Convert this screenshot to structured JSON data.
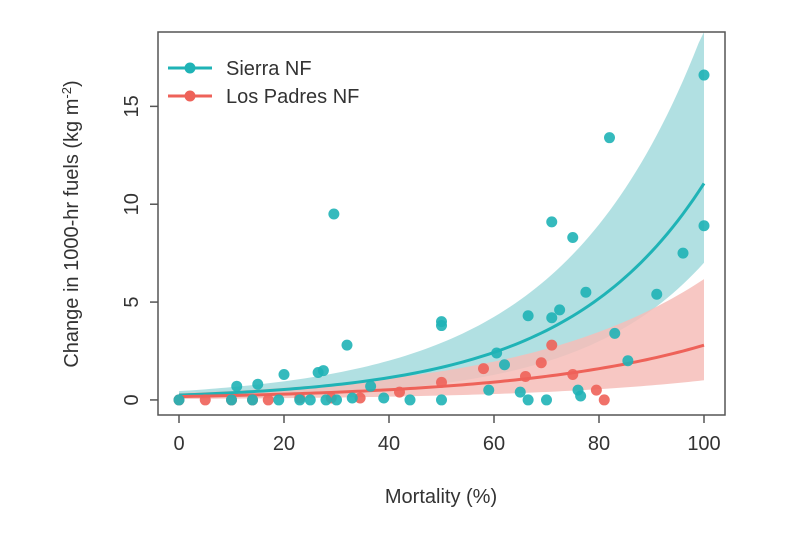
{
  "chart_data": {
    "type": "scatter",
    "title": "",
    "xlabel": "Mortality (%)",
    "ylabel_main": "Change in 1000-hr fuels (kg m",
    "ylabel_sup": "-2",
    "ylabel_end": ")",
    "xlim": [
      -4,
      104
    ],
    "ylim": [
      -0.77,
      18.8
    ],
    "xticks": [
      0,
      20,
      40,
      60,
      80,
      100
    ],
    "yticks": [
      0,
      5,
      10,
      15
    ],
    "grid": false,
    "legend_position": "top-left",
    "series": [
      {
        "name": "Sierra NF",
        "color": "#1fb3b6",
        "band_color": "#a3dadd",
        "fit": {
          "model": "exponential",
          "a": 0.25,
          "k": 0.0379
        },
        "band_lower": {
          "a": 0.1,
          "k": 0.0425
        },
        "band_upper": {
          "a": 0.45,
          "k": 0.0374
        },
        "points": [
          [
            0,
            0
          ],
          [
            11,
            0.7
          ],
          [
            15,
            0.8
          ],
          [
            20,
            1.3
          ],
          [
            26.5,
            1.4
          ],
          [
            27.5,
            1.5
          ],
          [
            29.5,
            9.5
          ],
          [
            32,
            2.8
          ],
          [
            36.5,
            0.7
          ],
          [
            50,
            4.0
          ],
          [
            50,
            3.8
          ],
          [
            50,
            0
          ],
          [
            60.5,
            2.4
          ],
          [
            62,
            1.8
          ],
          [
            66.5,
            4.3
          ],
          [
            71,
            9.1
          ],
          [
            71,
            4.2
          ],
          [
            72.5,
            4.6
          ],
          [
            75,
            8.3
          ],
          [
            77.5,
            5.5
          ],
          [
            82,
            13.4
          ],
          [
            83,
            3.4
          ],
          [
            85.5,
            2.0
          ],
          [
            91,
            5.4
          ],
          [
            96,
            7.5
          ],
          [
            100,
            16.6
          ],
          [
            100,
            8.9
          ],
          [
            10,
            0
          ],
          [
            14,
            0
          ],
          [
            19,
            0
          ],
          [
            23,
            0
          ],
          [
            25,
            0
          ],
          [
            28,
            0
          ],
          [
            30,
            0
          ],
          [
            33,
            0.1
          ],
          [
            39,
            0.1
          ],
          [
            44,
            0
          ],
          [
            59,
            0.5
          ],
          [
            65,
            0.4
          ],
          [
            66.5,
            0
          ],
          [
            70,
            0
          ],
          [
            76,
            0.5
          ],
          [
            76.5,
            0.2
          ]
        ]
      },
      {
        "name": "Los Padres NF",
        "color": "#ee6259",
        "band_color": "#f6bdb9",
        "fit": {
          "model": "exponential",
          "a": 0.17,
          "k": 0.028
        },
        "band_lower": {
          "a": 0.05,
          "k": 0.03
        },
        "band_upper": {
          "a": 0.35,
          "k": 0.0287
        },
        "points": [
          [
            0,
            0
          ],
          [
            5,
            0
          ],
          [
            10,
            0
          ],
          [
            14,
            0
          ],
          [
            17,
            0
          ],
          [
            23,
            0.1
          ],
          [
            29,
            0.1
          ],
          [
            34.5,
            0.1
          ],
          [
            42,
            0.4
          ],
          [
            50,
            0.9
          ],
          [
            58,
            1.6
          ],
          [
            66,
            1.2
          ],
          [
            69,
            1.9
          ],
          [
            71,
            2.8
          ],
          [
            75,
            1.3
          ],
          [
            79.5,
            0.5
          ],
          [
            81,
            0
          ]
        ]
      }
    ]
  }
}
